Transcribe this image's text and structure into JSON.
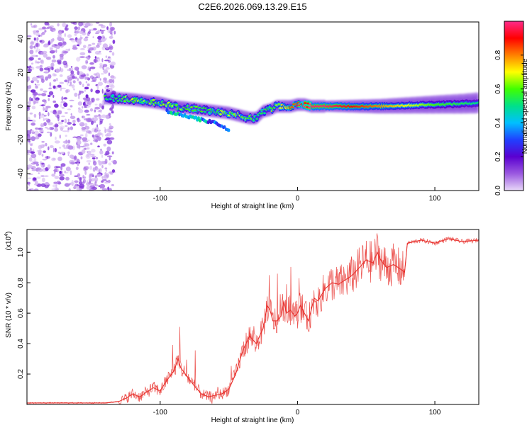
{
  "figure": {
    "title": "C2E6.2026.069.13.29.E15"
  },
  "chart_data": [
    {
      "type": "heatmap",
      "title": "C2E6.2026.069.13.29.E15",
      "xlabel": "Height of straight line (km)",
      "ylabel": "Frequency (Hz)",
      "xlim": [
        -197,
        132
      ],
      "ylim": [
        -50,
        50
      ],
      "xticks": [
        "-100",
        "0",
        "100"
      ],
      "xtick_values": [
        -100,
        0,
        100
      ],
      "yticks": [
        "-40",
        "-20",
        "0",
        "20",
        "40"
      ],
      "ytick_values": [
        -40,
        -20,
        0,
        20,
        40
      ],
      "colorbar": {
        "label": "Normalized spectral amplitude",
        "range": [
          0,
          1
        ],
        "ticks": [
          "0.0",
          "0.2",
          "0.4",
          "0.6",
          "0.8"
        ],
        "tick_values": [
          0,
          0.2,
          0.4,
          0.6,
          0.8
        ],
        "colors": [
          "#e8d8f8",
          "#9b59e0",
          "#5a00d0",
          "#2040ff",
          "#00c0ff",
          "#00e08a",
          "#40ff00",
          "#ffff00",
          "#ff8000",
          "#ff0000",
          "#ff2a8a"
        ]
      },
      "ridge": {
        "x": [
          -140,
          -130,
          -120,
          -110,
          -100,
          -90,
          -80,
          -70,
          -60,
          -50,
          -40,
          -35,
          -30,
          -25,
          -20,
          -15,
          -10,
          -5,
          0,
          5,
          10,
          20,
          40,
          60,
          80,
          100,
          120,
          132
        ],
        "frequency": [
          5,
          4.5,
          4,
          3,
          2,
          0,
          -1,
          -2,
          -3,
          -4,
          -6,
          -7,
          -7,
          -3,
          -2,
          0,
          0,
          0,
          1,
          1,
          0,
          0,
          0,
          0,
          0.5,
          1,
          1.5,
          2
        ],
        "amplitude": [
          0.5,
          0.55,
          0.6,
          0.58,
          0.55,
          0.6,
          0.55,
          0.5,
          0.55,
          0.6,
          0.65,
          0.55,
          0.5,
          0.5,
          0.55,
          0.6,
          0.7,
          0.8,
          0.9,
          0.95,
          0.98,
          0.98,
          0.9,
          0.8,
          0.7,
          0.6,
          0.55,
          0.5
        ]
      },
      "secondary_branch": {
        "x": [
          -95,
          -85,
          -75,
          -65,
          -60,
          -55,
          -50
        ],
        "frequency": [
          -3,
          -5,
          -7,
          -9,
          -10,
          -12,
          -14
        ],
        "amplitude": [
          0.5,
          0.55,
          0.5,
          0.45,
          0.4,
          0.4,
          0.35
        ]
      },
      "noise_region": {
        "x_range": [
          -197,
          -133
        ],
        "amplitude_max": 0.15
      }
    },
    {
      "type": "line",
      "xlabel": "Height of straight line (km)",
      "ylabel": "SNR (10 * v/v)",
      "yscale_label": "(x10",
      "yscale_exp": "4",
      "yscale_close": ")",
      "xlim": [
        -197,
        132
      ],
      "ylim": [
        0,
        1.15
      ],
      "xticks": [
        "-100",
        "0",
        "100"
      ],
      "xtick_values": [
        -100,
        0,
        100
      ],
      "yticks": [
        "0.2",
        "0.4",
        "0.6",
        "0.8",
        "1.0"
      ],
      "ytick_values": [
        0.2,
        0.4,
        0.6,
        0.8,
        1.0
      ],
      "series": [
        {
          "name": "SNR",
          "color": "#e8302c",
          "x": [
            -197,
            -160,
            -140,
            -130,
            -125,
            -120,
            -115,
            -110,
            -105,
            -100,
            -95,
            -90,
            -87,
            -85,
            -80,
            -75,
            -70,
            -65,
            -60,
            -55,
            -50,
            -45,
            -40,
            -35,
            -30,
            -25,
            -22,
            -20,
            -18,
            -15,
            -12,
            -10,
            -8,
            -5,
            -2,
            0,
            2,
            5,
            8,
            10,
            12,
            15,
            20,
            25,
            30,
            35,
            40,
            45,
            50,
            55,
            58,
            60,
            62,
            65,
            70,
            75,
            78,
            80,
            90,
            100,
            110,
            120,
            132
          ],
          "y": [
            0.01,
            0.01,
            0.01,
            0.02,
            0.04,
            0.07,
            0.05,
            0.08,
            0.11,
            0.09,
            0.16,
            0.22,
            0.3,
            0.24,
            0.18,
            0.12,
            0.07,
            0.05,
            0.06,
            0.07,
            0.1,
            0.2,
            0.35,
            0.45,
            0.4,
            0.5,
            0.65,
            0.62,
            0.55,
            0.55,
            0.58,
            0.68,
            0.6,
            0.62,
            0.58,
            0.6,
            0.65,
            0.6,
            0.55,
            0.62,
            0.7,
            0.68,
            0.76,
            0.8,
            0.79,
            0.82,
            0.85,
            0.9,
            0.95,
            0.93,
            1.0,
            0.96,
            0.93,
            0.9,
            0.92,
            0.89,
            0.87,
            1.06,
            1.08,
            1.06,
            1.09,
            1.07,
            1.08
          ]
        }
      ]
    }
  ]
}
